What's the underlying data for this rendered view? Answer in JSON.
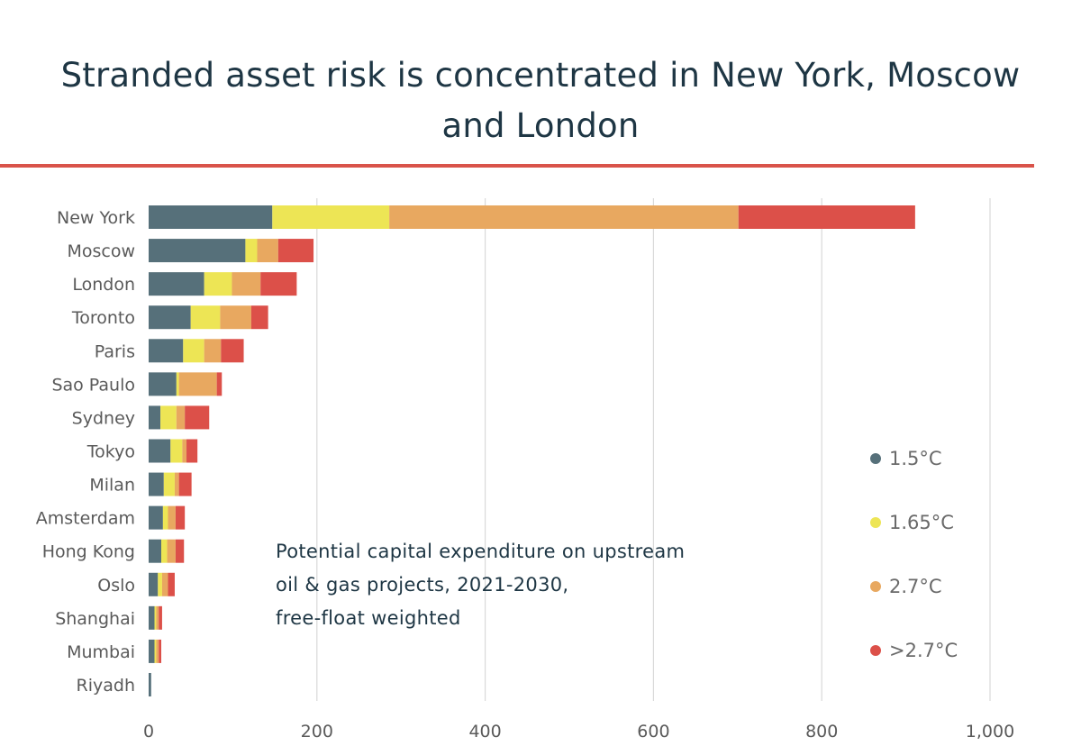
{
  "title": "Stranded asset risk is concentrated in New York, Moscow and London",
  "annotation": {
    "line1": "Potential capital expenditure on upstream",
    "line2": "oil & gas projects, 2021-2030,",
    "line3": "free-float weighted"
  },
  "colors": {
    "title_rule": "#d9534a",
    "gridline": "#d9d9d9"
  },
  "chart_data": {
    "type": "bar",
    "orientation": "horizontal",
    "stacked": true,
    "categories": [
      "New York",
      "Moscow",
      "London",
      "Toronto",
      "Paris",
      "Sao Paulo",
      "Sydney",
      "Tokyo",
      "Milan",
      "Amsterdam",
      "Hong Kong",
      "Oslo",
      "Shanghai",
      "Mumbai",
      "Riyadh"
    ],
    "series": [
      {
        "name": "1.5°C",
        "color": "#56707a",
        "values": [
          147,
          115,
          66,
          50,
          41,
          33,
          14,
          26,
          18,
          17,
          15,
          11,
          7,
          7,
          3
        ]
      },
      {
        "name": "1.65°C",
        "color": "#ede555",
        "values": [
          139,
          14,
          33,
          35,
          25,
          3,
          19,
          14,
          13,
          6,
          7,
          5,
          2,
          2,
          0
        ]
      },
      {
        "name": "2.7°C",
        "color": "#e8a860",
        "values": [
          415,
          25,
          34,
          37,
          20,
          45,
          10,
          5,
          5,
          9,
          10,
          7,
          3,
          3,
          0
        ]
      },
      {
        "name": ">2.7°C",
        "color": "#dc5049",
        "values": [
          210,
          42,
          43,
          20,
          27,
          6,
          29,
          13,
          15,
          11,
          10,
          8,
          4,
          3,
          0
        ]
      }
    ],
    "xlim": [
      0,
      1000
    ],
    "xticks": [
      0,
      200,
      400,
      600,
      800,
      1000
    ],
    "xtick_labels": [
      "0",
      "200",
      "400",
      "600",
      "800",
      "1,000"
    ],
    "grid": true,
    "legend_position": "right"
  }
}
